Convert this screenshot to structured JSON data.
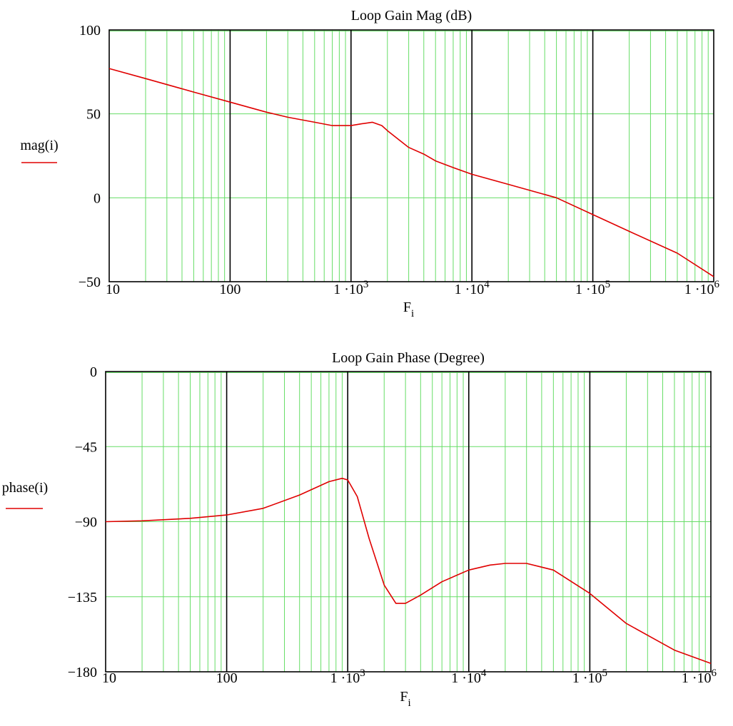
{
  "colors": {
    "minor_grid": "#66dd66",
    "major_grid": "#000000",
    "series": "#e00000",
    "frame": "#000000",
    "background": "#ffffff"
  },
  "chart_data": [
    {
      "type": "line",
      "title": "Loop Gain Mag (dB)",
      "xlabel": {
        "main": "F",
        "sub": "i"
      },
      "ylabel": "mag(i)",
      "x_scale": "log",
      "xlim": [
        10,
        1000000
      ],
      "ylim": [
        -50,
        100
      ],
      "grid": true,
      "legend": "left",
      "x_ticks": [
        {
          "v": 10,
          "base": "10",
          "exp": ""
        },
        {
          "v": 100,
          "base": "100",
          "exp": ""
        },
        {
          "v": 1000,
          "base": "1 ·10",
          "exp": "3"
        },
        {
          "v": 10000,
          "base": "1 ·10",
          "exp": "4"
        },
        {
          "v": 100000,
          "base": "1 ·10",
          "exp": "5"
        },
        {
          "v": 1000000,
          "base": "1 ·10",
          "exp": "6"
        }
      ],
      "y_ticks": [
        {
          "v": 100,
          "label": "100"
        },
        {
          "v": 50,
          "label": "50"
        },
        {
          "v": 0,
          "label": "0"
        },
        {
          "v": -50,
          "label": "−50"
        }
      ],
      "series": [
        {
          "name": "mag(i)",
          "x": [
            10,
            20,
            50,
            100,
            200,
            300,
            500,
            700,
            1000,
            1200,
            1500,
            1800,
            2000,
            3000,
            4000,
            5000,
            7000,
            10000,
            20000,
            50000,
            100000,
            200000,
            500000,
            1000000
          ],
          "y": [
            77,
            71,
            63,
            57,
            51,
            48,
            45,
            43,
            43,
            44,
            45,
            43,
            40,
            30,
            26,
            22,
            18,
            14,
            8,
            0,
            -10,
            -20,
            -33,
            -47
          ]
        }
      ]
    },
    {
      "type": "line",
      "title": "Loop Gain Phase (Degree)",
      "xlabel": {
        "main": "F",
        "sub": "i"
      },
      "ylabel": "phase(i)",
      "x_scale": "log",
      "xlim": [
        10,
        1000000
      ],
      "ylim": [
        -180,
        0
      ],
      "grid": true,
      "legend": "left",
      "x_ticks": [
        {
          "v": 10,
          "base": "10",
          "exp": ""
        },
        {
          "v": 100,
          "base": "100",
          "exp": ""
        },
        {
          "v": 1000,
          "base": "1 ·10",
          "exp": "3"
        },
        {
          "v": 10000,
          "base": "1 ·10",
          "exp": "4"
        },
        {
          "v": 100000,
          "base": "1 ·10",
          "exp": "5"
        },
        {
          "v": 1000000,
          "base": "1 ·10",
          "exp": "6"
        }
      ],
      "y_ticks": [
        {
          "v": 0,
          "label": "0"
        },
        {
          "v": -45,
          "label": "−45"
        },
        {
          "v": -90,
          "label": "−90"
        },
        {
          "v": -135,
          "label": "−135"
        },
        {
          "v": -180,
          "label": "−180"
        }
      ],
      "series": [
        {
          "name": "phase(i)",
          "x": [
            10,
            20,
            50,
            100,
            200,
            400,
            700,
            900,
            1000,
            1200,
            1500,
            2000,
            2500,
            3000,
            4000,
            6000,
            10000,
            15000,
            20000,
            30000,
            50000,
            100000,
            200000,
            500000,
            1000000
          ],
          "y": [
            -90,
            -89.5,
            -88,
            -86,
            -82,
            -74,
            -66,
            -64,
            -65,
            -75,
            -100,
            -128,
            -139,
            -139,
            -134,
            -126,
            -119,
            -116,
            -115,
            -115,
            -119,
            -133,
            -151,
            -167,
            -175
          ]
        }
      ]
    }
  ]
}
